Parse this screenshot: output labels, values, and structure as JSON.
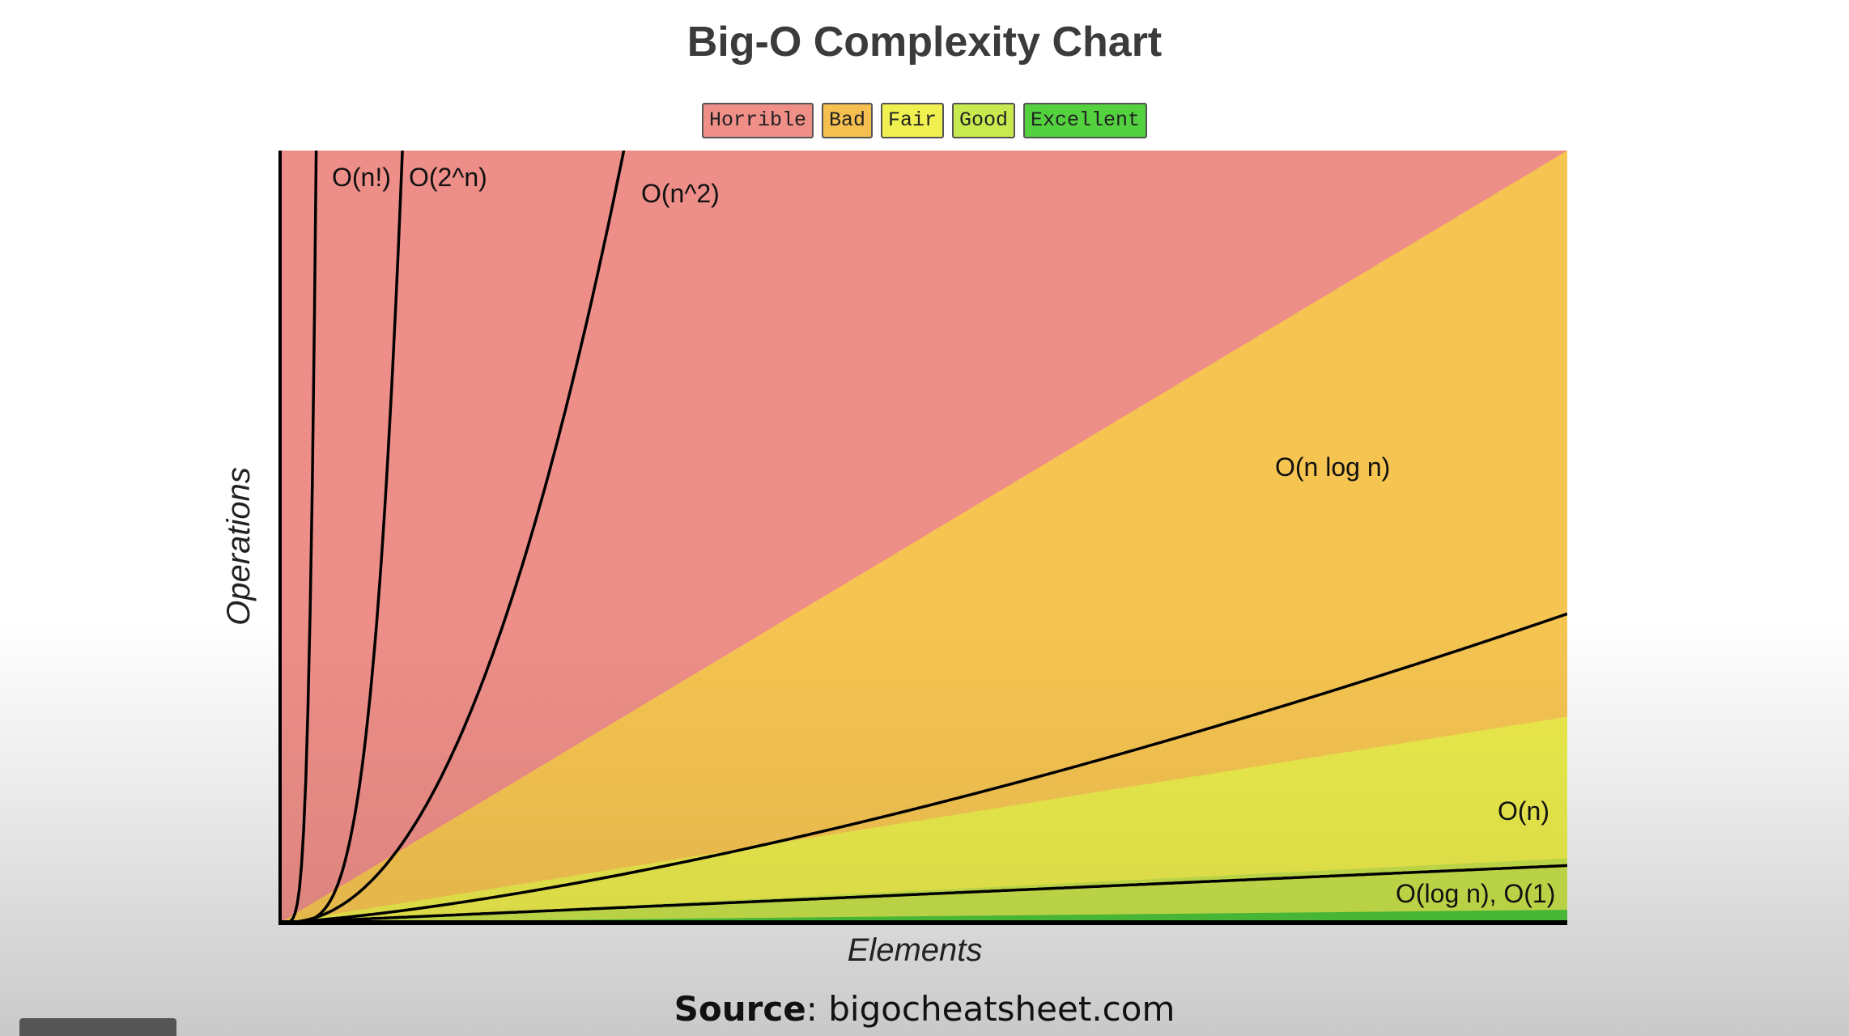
{
  "chart_data": {
    "type": "line",
    "title": "Big-O Complexity Chart",
    "xlabel": "Elements",
    "ylabel": "Operations",
    "legend": [
      {
        "label": "Horrible",
        "color": "#f08e88"
      },
      {
        "label": "Bad",
        "color": "#f5c04f"
      },
      {
        "label": "Fair",
        "color": "#f0f050"
      },
      {
        "label": "Good",
        "color": "#c8ea4e"
      },
      {
        "label": "Excellent",
        "color": "#53d13e"
      }
    ],
    "zones": [
      {
        "name": "Horrible",
        "color": "#ee8e88",
        "boundary_slope": 0.6
      },
      {
        "name": "Bad",
        "color": "#f5c451",
        "boundary_slope": 0.16
      },
      {
        "name": "Fair",
        "color": "#eaea4c",
        "boundary_slope": 0.05
      },
      {
        "name": "Good",
        "color": "#c6e04a",
        "boundary_slope": 0.01
      },
      {
        "name": "Excellent",
        "color": "#4cc23a"
      }
    ],
    "series": [
      {
        "name": "O(n!)",
        "label": "O(n!)",
        "formula": "factorial"
      },
      {
        "name": "O(2^n)",
        "label": "O(2^n)",
        "formula": "exp2"
      },
      {
        "name": "O(n^2)",
        "label": "O(n^2)",
        "formula": "square"
      },
      {
        "name": "O(n log n)",
        "label": "O(n log n)",
        "formula": "nlogn"
      },
      {
        "name": "O(n)",
        "label": "O(n)",
        "formula": "linear"
      },
      {
        "name": "O(log n), O(1)",
        "label": "O(log n), O(1)",
        "formula": "flat"
      }
    ]
  },
  "source": {
    "prefix": "Source",
    "separator": ":",
    "site": "bigocheatsheet.com"
  }
}
